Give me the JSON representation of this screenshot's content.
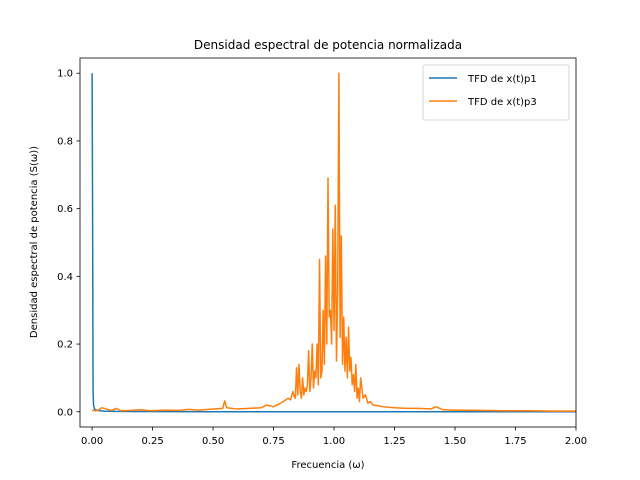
{
  "chart_data": {
    "type": "line",
    "title": "Densidad espectral de potencia normalizada",
    "xlabel": "Frecuencia (ω)",
    "ylabel": "Densidad espectral de potencia (S(ω))",
    "xlim": [
      -0.05,
      2.0
    ],
    "ylim": [
      -0.045,
      1.045
    ],
    "xticks": [
      "0.00",
      "0.25",
      "0.50",
      "0.75",
      "1.00",
      "1.25",
      "1.50",
      "1.75",
      "2.00"
    ],
    "xtick_values": [
      0,
      0.25,
      0.5,
      0.75,
      1.0,
      1.25,
      1.5,
      1.75,
      2.0
    ],
    "yticks": [
      "0.0",
      "0.2",
      "0.4",
      "0.6",
      "0.8",
      "1.0"
    ],
    "ytick_values": [
      0,
      0.2,
      0.4,
      0.6,
      0.8,
      1.0
    ],
    "legend_position": "top-right",
    "grid": false,
    "series": [
      {
        "name": "TFD de x(t)p1",
        "color": "#1f77b4",
        "x": [
          0.0,
          0.002,
          0.004,
          0.006,
          0.01,
          0.02,
          0.05,
          0.1,
          0.5,
          1.0,
          1.5,
          2.0
        ],
        "y": [
          1.0,
          0.6,
          0.06,
          0.02,
          0.008,
          0.004,
          0.002,
          0.001,
          0.0,
          0.0,
          0.0,
          0.0
        ]
      },
      {
        "name": "TFD de x(t)p3",
        "color": "#ff7f0e",
        "x": [
          0.0,
          0.02,
          0.04,
          0.08,
          0.1,
          0.12,
          0.16,
          0.2,
          0.24,
          0.3,
          0.36,
          0.4,
          0.44,
          0.5,
          0.54,
          0.548,
          0.556,
          0.6,
          0.65,
          0.7,
          0.72,
          0.75,
          0.77,
          0.79,
          0.81,
          0.82,
          0.83,
          0.835,
          0.84,
          0.845,
          0.85,
          0.855,
          0.86,
          0.865,
          0.87,
          0.875,
          0.88,
          0.885,
          0.89,
          0.895,
          0.9,
          0.905,
          0.91,
          0.915,
          0.92,
          0.925,
          0.93,
          0.935,
          0.94,
          0.945,
          0.95,
          0.955,
          0.96,
          0.965,
          0.97,
          0.975,
          0.98,
          0.985,
          0.99,
          0.995,
          1.0,
          1.005,
          1.01,
          1.015,
          1.02,
          1.025,
          1.03,
          1.035,
          1.04,
          1.045,
          1.05,
          1.055,
          1.06,
          1.065,
          1.07,
          1.075,
          1.08,
          1.085,
          1.09,
          1.095,
          1.1,
          1.105,
          1.11,
          1.12,
          1.13,
          1.14,
          1.15,
          1.16,
          1.18,
          1.2,
          1.25,
          1.3,
          1.35,
          1.4,
          1.42,
          1.45,
          1.5,
          1.6,
          1.7,
          1.8,
          1.9,
          2.0
        ],
        "y": [
          0.004,
          0.003,
          0.012,
          0.004,
          0.01,
          0.003,
          0.004,
          0.006,
          0.003,
          0.005,
          0.004,
          0.007,
          0.005,
          0.008,
          0.01,
          0.032,
          0.012,
          0.008,
          0.01,
          0.012,
          0.02,
          0.015,
          0.022,
          0.03,
          0.04,
          0.035,
          0.06,
          0.045,
          0.04,
          0.13,
          0.05,
          0.14,
          0.06,
          0.04,
          0.1,
          0.05,
          0.07,
          0.06,
          0.08,
          0.18,
          0.06,
          0.1,
          0.2,
          0.07,
          0.12,
          0.1,
          0.2,
          0.08,
          0.45,
          0.1,
          0.12,
          0.3,
          0.14,
          0.46,
          0.2,
          0.69,
          0.28,
          0.3,
          0.2,
          0.54,
          0.24,
          0.61,
          0.15,
          0.35,
          1.0,
          0.22,
          0.52,
          0.14,
          0.28,
          0.12,
          0.22,
          0.1,
          0.25,
          0.12,
          0.16,
          0.08,
          0.11,
          0.06,
          0.14,
          0.04,
          0.07,
          0.03,
          0.1,
          0.04,
          0.05,
          0.025,
          0.03,
          0.02,
          0.018,
          0.015,
          0.012,
          0.01,
          0.01,
          0.008,
          0.015,
          0.006,
          0.005,
          0.004,
          0.003,
          0.003,
          0.002,
          0.002
        ]
      }
    ]
  }
}
